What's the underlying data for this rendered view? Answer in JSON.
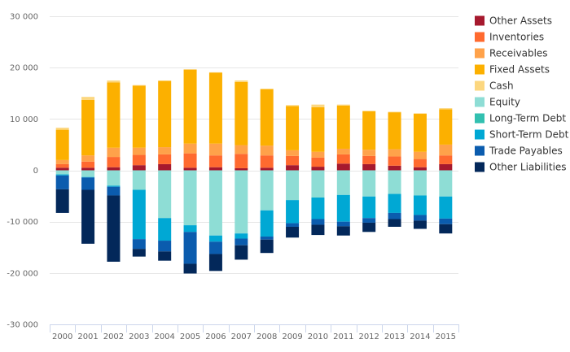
{
  "chart_data": {
    "type": "bar",
    "stacked": true,
    "categories": [
      "2000",
      "2001",
      "2002",
      "2003",
      "2004",
      "2005",
      "2006",
      "2007",
      "2008",
      "2009",
      "2010",
      "2011",
      "2012",
      "2013",
      "2014",
      "2015"
    ],
    "ylim": [
      -30000,
      30000
    ],
    "yticks": [
      -30000,
      -20000,
      -10000,
      0,
      10000,
      20000,
      30000
    ],
    "ytick_labels": [
      "-30 000",
      "-20 000",
      "-10 000",
      "0",
      "10 000",
      "20 000",
      "30 000"
    ],
    "grid": true,
    "legend_position": "right",
    "series": [
      {
        "name": "Other Assets",
        "color": "#a6192e",
        "values": [
          500,
          500,
          600,
          1000,
          1200,
          500,
          600,
          400,
          500,
          1000,
          700,
          1300,
          1200,
          900,
          600,
          1200
        ]
      },
      {
        "name": "Inventories",
        "color": "#ff6a2f",
        "values": [
          700,
          1200,
          2000,
          2000,
          1900,
          2800,
          2300,
          2800,
          2400,
          1800,
          1800,
          1800,
          1600,
          1800,
          1600,
          1700
        ]
      },
      {
        "name": "Receivables",
        "color": "#ffa24a",
        "values": [
          800,
          1200,
          1800,
          1400,
          1400,
          1900,
          2300,
          1700,
          1900,
          1100,
          1100,
          1100,
          1200,
          1400,
          1400,
          2100
        ]
      },
      {
        "name": "Fixed Assets",
        "color": "#fcb000",
        "values": [
          5900,
          10800,
          12700,
          12100,
          12900,
          14400,
          13800,
          12300,
          11000,
          8600,
          8700,
          8400,
          7500,
          7200,
          7400,
          6900
        ]
      },
      {
        "name": "Cash",
        "color": "#fcd77f",
        "values": [
          400,
          600,
          400,
          100,
          100,
          100,
          100,
          300,
          100,
          200,
          500,
          200,
          100,
          100,
          100,
          200
        ]
      },
      {
        "name": "Equity",
        "color": "#8eddd5",
        "values": [
          -800,
          -1300,
          -3000,
          -3800,
          -9300,
          -10700,
          -12700,
          -12300,
          -7800,
          -5800,
          -5300,
          -4800,
          -5100,
          -4600,
          -4900,
          -5100
        ]
      },
      {
        "name": "Long-Term Debt",
        "color": "#32c0b0",
        "values": [
          0,
          0,
          0,
          0,
          0,
          0,
          0,
          0,
          0,
          0,
          0,
          0,
          0,
          0,
          0,
          0
        ]
      },
      {
        "name": "Short-Term Debt",
        "color": "#00a8d4",
        "values": [
          -200,
          -100,
          -200,
          -9600,
          -4400,
          -1300,
          -1200,
          -1000,
          -5100,
          -4500,
          -4200,
          -5200,
          -4200,
          -3700,
          -3800,
          -4300
        ]
      },
      {
        "name": "Trade Payables",
        "color": "#0b5cae",
        "values": [
          -2700,
          -2400,
          -1700,
          -1900,
          -2100,
          -6200,
          -2400,
          -1300,
          -600,
          -700,
          -1100,
          -900,
          -900,
          -1200,
          -1100,
          -1100
        ]
      },
      {
        "name": "Other Liabilities",
        "color": "#03285a",
        "values": [
          -4600,
          -10500,
          -12900,
          -1500,
          -1800,
          -1900,
          -3300,
          -2800,
          -2600,
          -2100,
          -2000,
          -1800,
          -1800,
          -1500,
          -1600,
          -1800
        ]
      }
    ]
  }
}
